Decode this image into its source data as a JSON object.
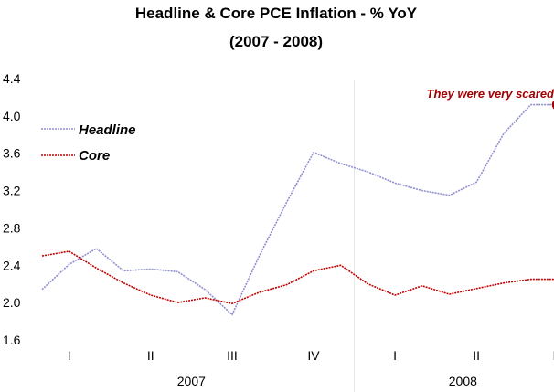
{
  "chart_data": {
    "type": "line",
    "title": "Headline & Core PCE Inflation - % YoY",
    "subtitle": "(2007 - 2008)",
    "xlabel": "",
    "ylabel": "",
    "ylim": [
      1.6,
      4.4
    ],
    "yticks": [
      "1.6",
      "2.0",
      "2.4",
      "2.8",
      "3.2",
      "3.6",
      "4.0",
      "4.4"
    ],
    "ytick_values": [
      1.6,
      2.0,
      2.4,
      2.8,
      3.2,
      3.6,
      4.0,
      4.4
    ],
    "grid": false,
    "legend": "top-left",
    "quarter_labels": [
      {
        "label": "I",
        "month_index": 1
      },
      {
        "label": "II",
        "month_index": 4
      },
      {
        "label": "III",
        "month_index": 7
      },
      {
        "label": "IV",
        "month_index": 10
      },
      {
        "label": "I",
        "month_index": 13
      },
      {
        "label": "II",
        "month_index": 16
      },
      {
        "label": "III",
        "month_index": 19
      }
    ],
    "year_labels": [
      {
        "label": "2007",
        "month_index": 5.5
      },
      {
        "label": "2008",
        "month_index": 15.5
      }
    ],
    "year_divider_month_index": 11.5,
    "x": [
      0,
      1,
      2,
      3,
      4,
      5,
      6,
      7,
      8,
      9,
      10,
      11,
      12,
      13,
      14,
      15,
      16,
      17,
      18,
      19
    ],
    "series": [
      {
        "name": "Headline",
        "color": "#8f8fd0",
        "values": [
          2.14,
          2.41,
          2.58,
          2.34,
          2.36,
          2.33,
          2.14,
          1.87,
          2.5,
          3.07,
          3.61,
          3.49,
          3.4,
          3.28,
          3.2,
          3.15,
          3.29,
          3.81,
          4.12,
          4.12
        ]
      },
      {
        "name": "Core",
        "color": "#c00000",
        "values": [
          2.5,
          2.55,
          2.37,
          2.21,
          2.08,
          2.0,
          2.05,
          1.99,
          2.11,
          2.19,
          2.34,
          2.4,
          2.2,
          2.08,
          2.18,
          2.09,
          2.15,
          2.21,
          2.25,
          2.25
        ]
      }
    ],
    "annotation": {
      "text": "They were very scared",
      "month_index": 19,
      "value": 4.12,
      "color": "#a00000"
    }
  }
}
